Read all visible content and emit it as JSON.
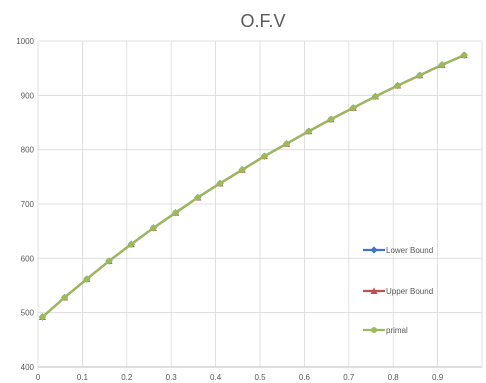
{
  "chart_data": {
    "type": "line",
    "title": "O.F.V",
    "xlabel": "",
    "ylabel": "",
    "xlim": [
      0,
      1
    ],
    "ylim": [
      400,
      1000
    ],
    "x_ticks": [
      0,
      0.1,
      0.2,
      0.3,
      0.4,
      0.5,
      0.6,
      0.7,
      0.8,
      0.9
    ],
    "x_tick_labels": [
      "0",
      "0.1",
      "0.2",
      "0.3",
      "0.4",
      "0.5",
      "0.6",
      "0.7",
      "0.8",
      "0.9"
    ],
    "y_ticks": [
      400,
      500,
      600,
      700,
      800,
      900,
      1000
    ],
    "y_tick_labels": [
      "400",
      "500",
      "600",
      "700",
      "800",
      "900",
      "1000"
    ],
    "grid": true,
    "legend_position": "right",
    "x": [
      0.01,
      0.06,
      0.11,
      0.16,
      0.21,
      0.26,
      0.31,
      0.36,
      0.41,
      0.46,
      0.51,
      0.56,
      0.61,
      0.66,
      0.71,
      0.76,
      0.81,
      0.86,
      0.91,
      0.96
    ],
    "series": [
      {
        "name": "Lower Bound",
        "color": "#4472C4",
        "marker": "diamond",
        "values": [
          492,
          528,
          562,
          595,
          626,
          656,
          684,
          712,
          738,
          763,
          788,
          811,
          834,
          856,
          877,
          898,
          918,
          937,
          956,
          974
        ]
      },
      {
        "name": "Upper Bound",
        "color": "#C0504D",
        "marker": "triangle",
        "values": [
          492,
          528,
          562,
          595,
          626,
          656,
          684,
          712,
          738,
          763,
          788,
          811,
          834,
          856,
          877,
          898,
          918,
          937,
          956,
          974
        ]
      },
      {
        "name": "primal",
        "color": "#9BBB59",
        "marker": "circle",
        "values": [
          492,
          528,
          562,
          595,
          626,
          656,
          684,
          712,
          738,
          763,
          788,
          811,
          834,
          856,
          877,
          898,
          918,
          937,
          956,
          974
        ]
      }
    ]
  }
}
